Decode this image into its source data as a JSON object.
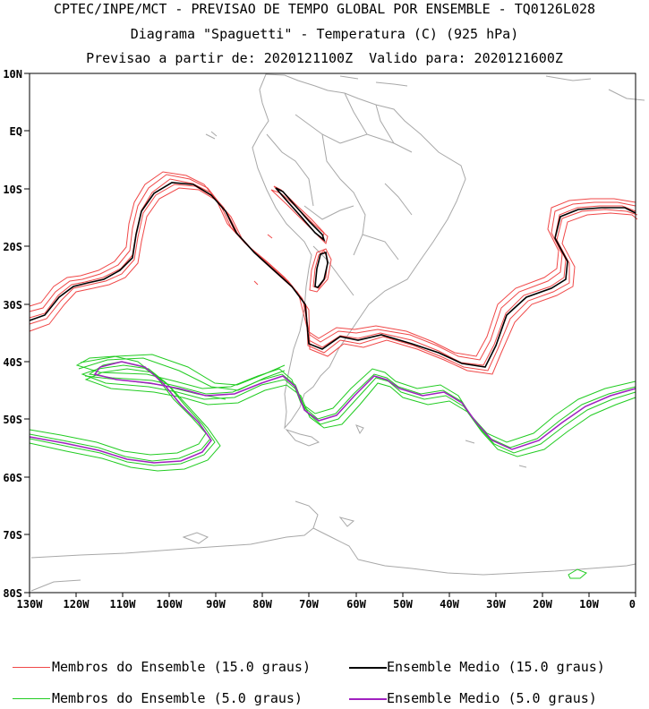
{
  "header": {
    "line1": "CPTEC/INPE/MCT - PREVISAO DE TEMPO GLOBAL POR ENSEMBLE - TQ0126L028",
    "line2": "Diagrama \"Spaguetti\" - Temperatura (C) (925 hPa)",
    "line3": "Previsao a partir de: 2020121100Z  Valido para: 2020121600Z"
  },
  "axes": {
    "lat_labels": [
      "10N",
      "EQ",
      "10S",
      "20S",
      "30S",
      "40S",
      "50S",
      "60S",
      "70S",
      "80S"
    ],
    "lon_labels": [
      "130W",
      "120W",
      "110W",
      "100W",
      "90W",
      "80W",
      "70W",
      "60W",
      "50W",
      "40W",
      "30W",
      "20W",
      "10W",
      "0"
    ]
  },
  "colors": {
    "member_15": "#f04848",
    "mean_15": "#000000",
    "member_5": "#22cc22",
    "mean_5": "#a020c0",
    "coast": "#a8a8a8"
  },
  "legend": [
    {
      "label": "Membros do Ensemble (15.0 graus)",
      "color": "#f04848"
    },
    {
      "label": "Ensemble Medio (15.0 graus)",
      "color": "#000000"
    },
    {
      "label": "Membros do Ensemble (5.0 graus)",
      "color": "#22cc22"
    },
    {
      "label": "Ensemble Medio (5.0 graus)",
      "color": "#a020c0"
    }
  ]
}
